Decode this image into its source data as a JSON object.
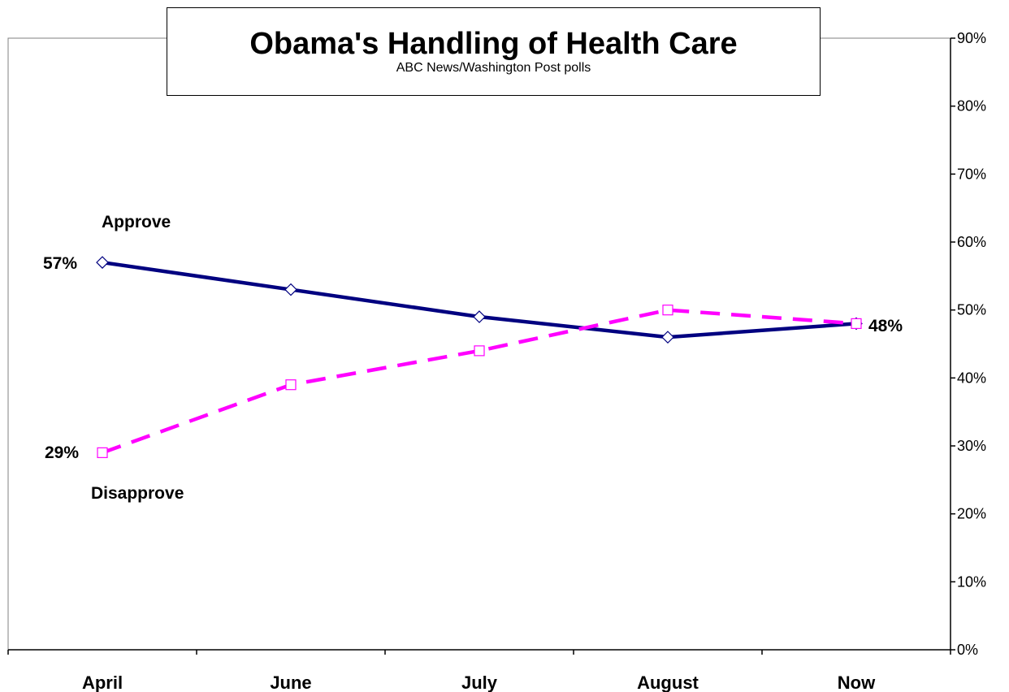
{
  "chart_data": {
    "type": "line",
    "title": "Obama's Handling of Health Care",
    "subtitle": "ABC News/Washington Post polls",
    "categories": [
      "April",
      "June",
      "July",
      "August",
      "Now"
    ],
    "ylim": [
      0,
      90
    ],
    "yticks": [
      "0%",
      "10%",
      "20%",
      "30%",
      "40%",
      "50%",
      "60%",
      "70%",
      "80%",
      "90%"
    ],
    "y_axis_side": "right",
    "grid": false,
    "legend": "none",
    "series": [
      {
        "name": "Approve",
        "values": [
          57,
          53,
          49,
          46,
          48
        ],
        "color": "#000080",
        "style": "solid",
        "marker": "diamond"
      },
      {
        "name": "Disapprove",
        "values": [
          29,
          39,
          44,
          50,
          48
        ],
        "color": "#ff00ff",
        "style": "dashed",
        "marker": "square"
      }
    ],
    "annotations": {
      "approve_label": "Approve",
      "disapprove_label": "Disapprove",
      "approve_start": "57%",
      "disapprove_start": "29%",
      "end_value": "48%"
    }
  }
}
